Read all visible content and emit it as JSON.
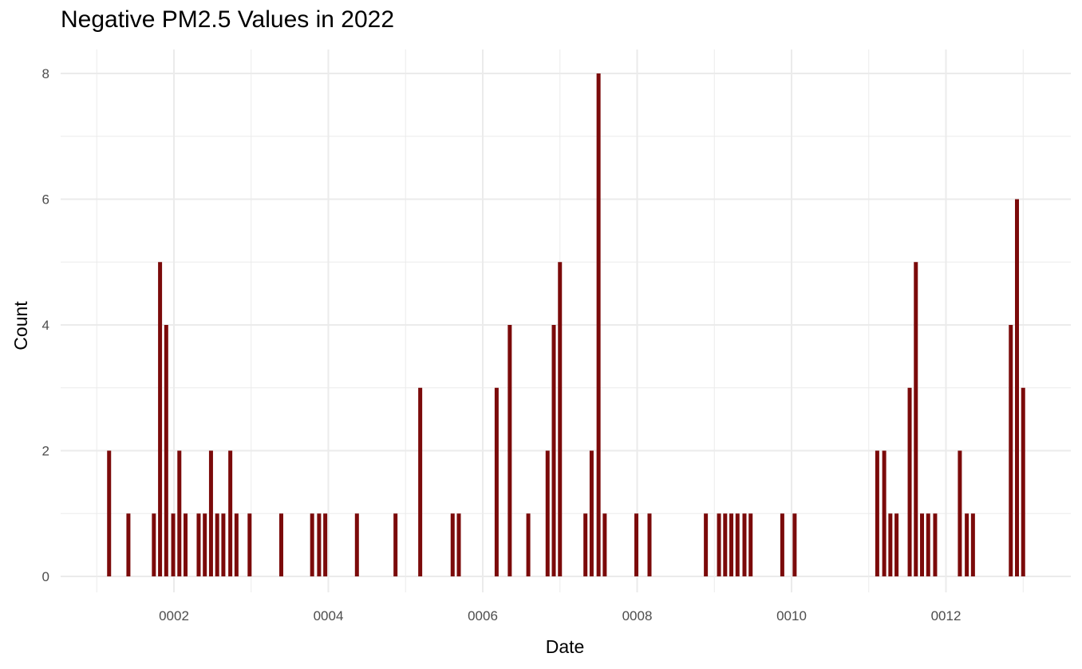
{
  "chart_data": {
    "type": "bar",
    "title": "Negative PM2.5 Values in 2022",
    "xlabel": "Date",
    "ylabel": "Count",
    "x_ticks": [
      "0002",
      "0004",
      "0006",
      "0008",
      "0010",
      "0012"
    ],
    "y_ticks": [
      "0",
      "2",
      "4",
      "6",
      "8"
    ],
    "ylim": [
      0,
      8.3
    ],
    "grid": true,
    "bar_color": "#7B0A0A",
    "values": [
      {
        "x": 1.16,
        "y": 2
      },
      {
        "x": 1.41,
        "y": 1
      },
      {
        "x": 1.74,
        "y": 1
      },
      {
        "x": 1.82,
        "y": 5
      },
      {
        "x": 1.9,
        "y": 4
      },
      {
        "x": 1.99,
        "y": 1
      },
      {
        "x": 2.07,
        "y": 2
      },
      {
        "x": 2.15,
        "y": 1
      },
      {
        "x": 2.32,
        "y": 1
      },
      {
        "x": 2.4,
        "y": 1
      },
      {
        "x": 2.48,
        "y": 2
      },
      {
        "x": 2.56,
        "y": 1
      },
      {
        "x": 2.64,
        "y": 1
      },
      {
        "x": 2.73,
        "y": 2
      },
      {
        "x": 2.81,
        "y": 1
      },
      {
        "x": 2.98,
        "y": 1
      },
      {
        "x": 3.39,
        "y": 1
      },
      {
        "x": 3.79,
        "y": 1
      },
      {
        "x": 3.88,
        "y": 1
      },
      {
        "x": 3.96,
        "y": 1
      },
      {
        "x": 4.37,
        "y": 1
      },
      {
        "x": 4.87,
        "y": 1
      },
      {
        "x": 5.19,
        "y": 3
      },
      {
        "x": 5.61,
        "y": 1
      },
      {
        "x": 5.69,
        "y": 1
      },
      {
        "x": 6.18,
        "y": 3
      },
      {
        "x": 6.35,
        "y": 4
      },
      {
        "x": 6.59,
        "y": 1
      },
      {
        "x": 6.84,
        "y": 2
      },
      {
        "x": 6.92,
        "y": 4
      },
      {
        "x": 7.0,
        "y": 5
      },
      {
        "x": 7.33,
        "y": 1
      },
      {
        "x": 7.41,
        "y": 2
      },
      {
        "x": 7.5,
        "y": 8
      },
      {
        "x": 7.58,
        "y": 1
      },
      {
        "x": 7.99,
        "y": 1
      },
      {
        "x": 8.16,
        "y": 1
      },
      {
        "x": 8.89,
        "y": 1
      },
      {
        "x": 9.06,
        "y": 1
      },
      {
        "x": 9.14,
        "y": 1
      },
      {
        "x": 9.22,
        "y": 1
      },
      {
        "x": 9.3,
        "y": 1
      },
      {
        "x": 9.39,
        "y": 1
      },
      {
        "x": 9.47,
        "y": 1
      },
      {
        "x": 9.88,
        "y": 1
      },
      {
        "x": 10.04,
        "y": 1
      },
      {
        "x": 11.11,
        "y": 2
      },
      {
        "x": 11.2,
        "y": 2
      },
      {
        "x": 11.28,
        "y": 1
      },
      {
        "x": 11.36,
        "y": 1
      },
      {
        "x": 11.53,
        "y": 3
      },
      {
        "x": 11.61,
        "y": 5
      },
      {
        "x": 11.69,
        "y": 1
      },
      {
        "x": 11.77,
        "y": 1
      },
      {
        "x": 11.86,
        "y": 1
      },
      {
        "x": 12.18,
        "y": 2
      },
      {
        "x": 12.27,
        "y": 1
      },
      {
        "x": 12.35,
        "y": 1
      },
      {
        "x": 12.84,
        "y": 4
      },
      {
        "x": 12.92,
        "y": 6
      },
      {
        "x": 13.0,
        "y": 3
      }
    ]
  }
}
